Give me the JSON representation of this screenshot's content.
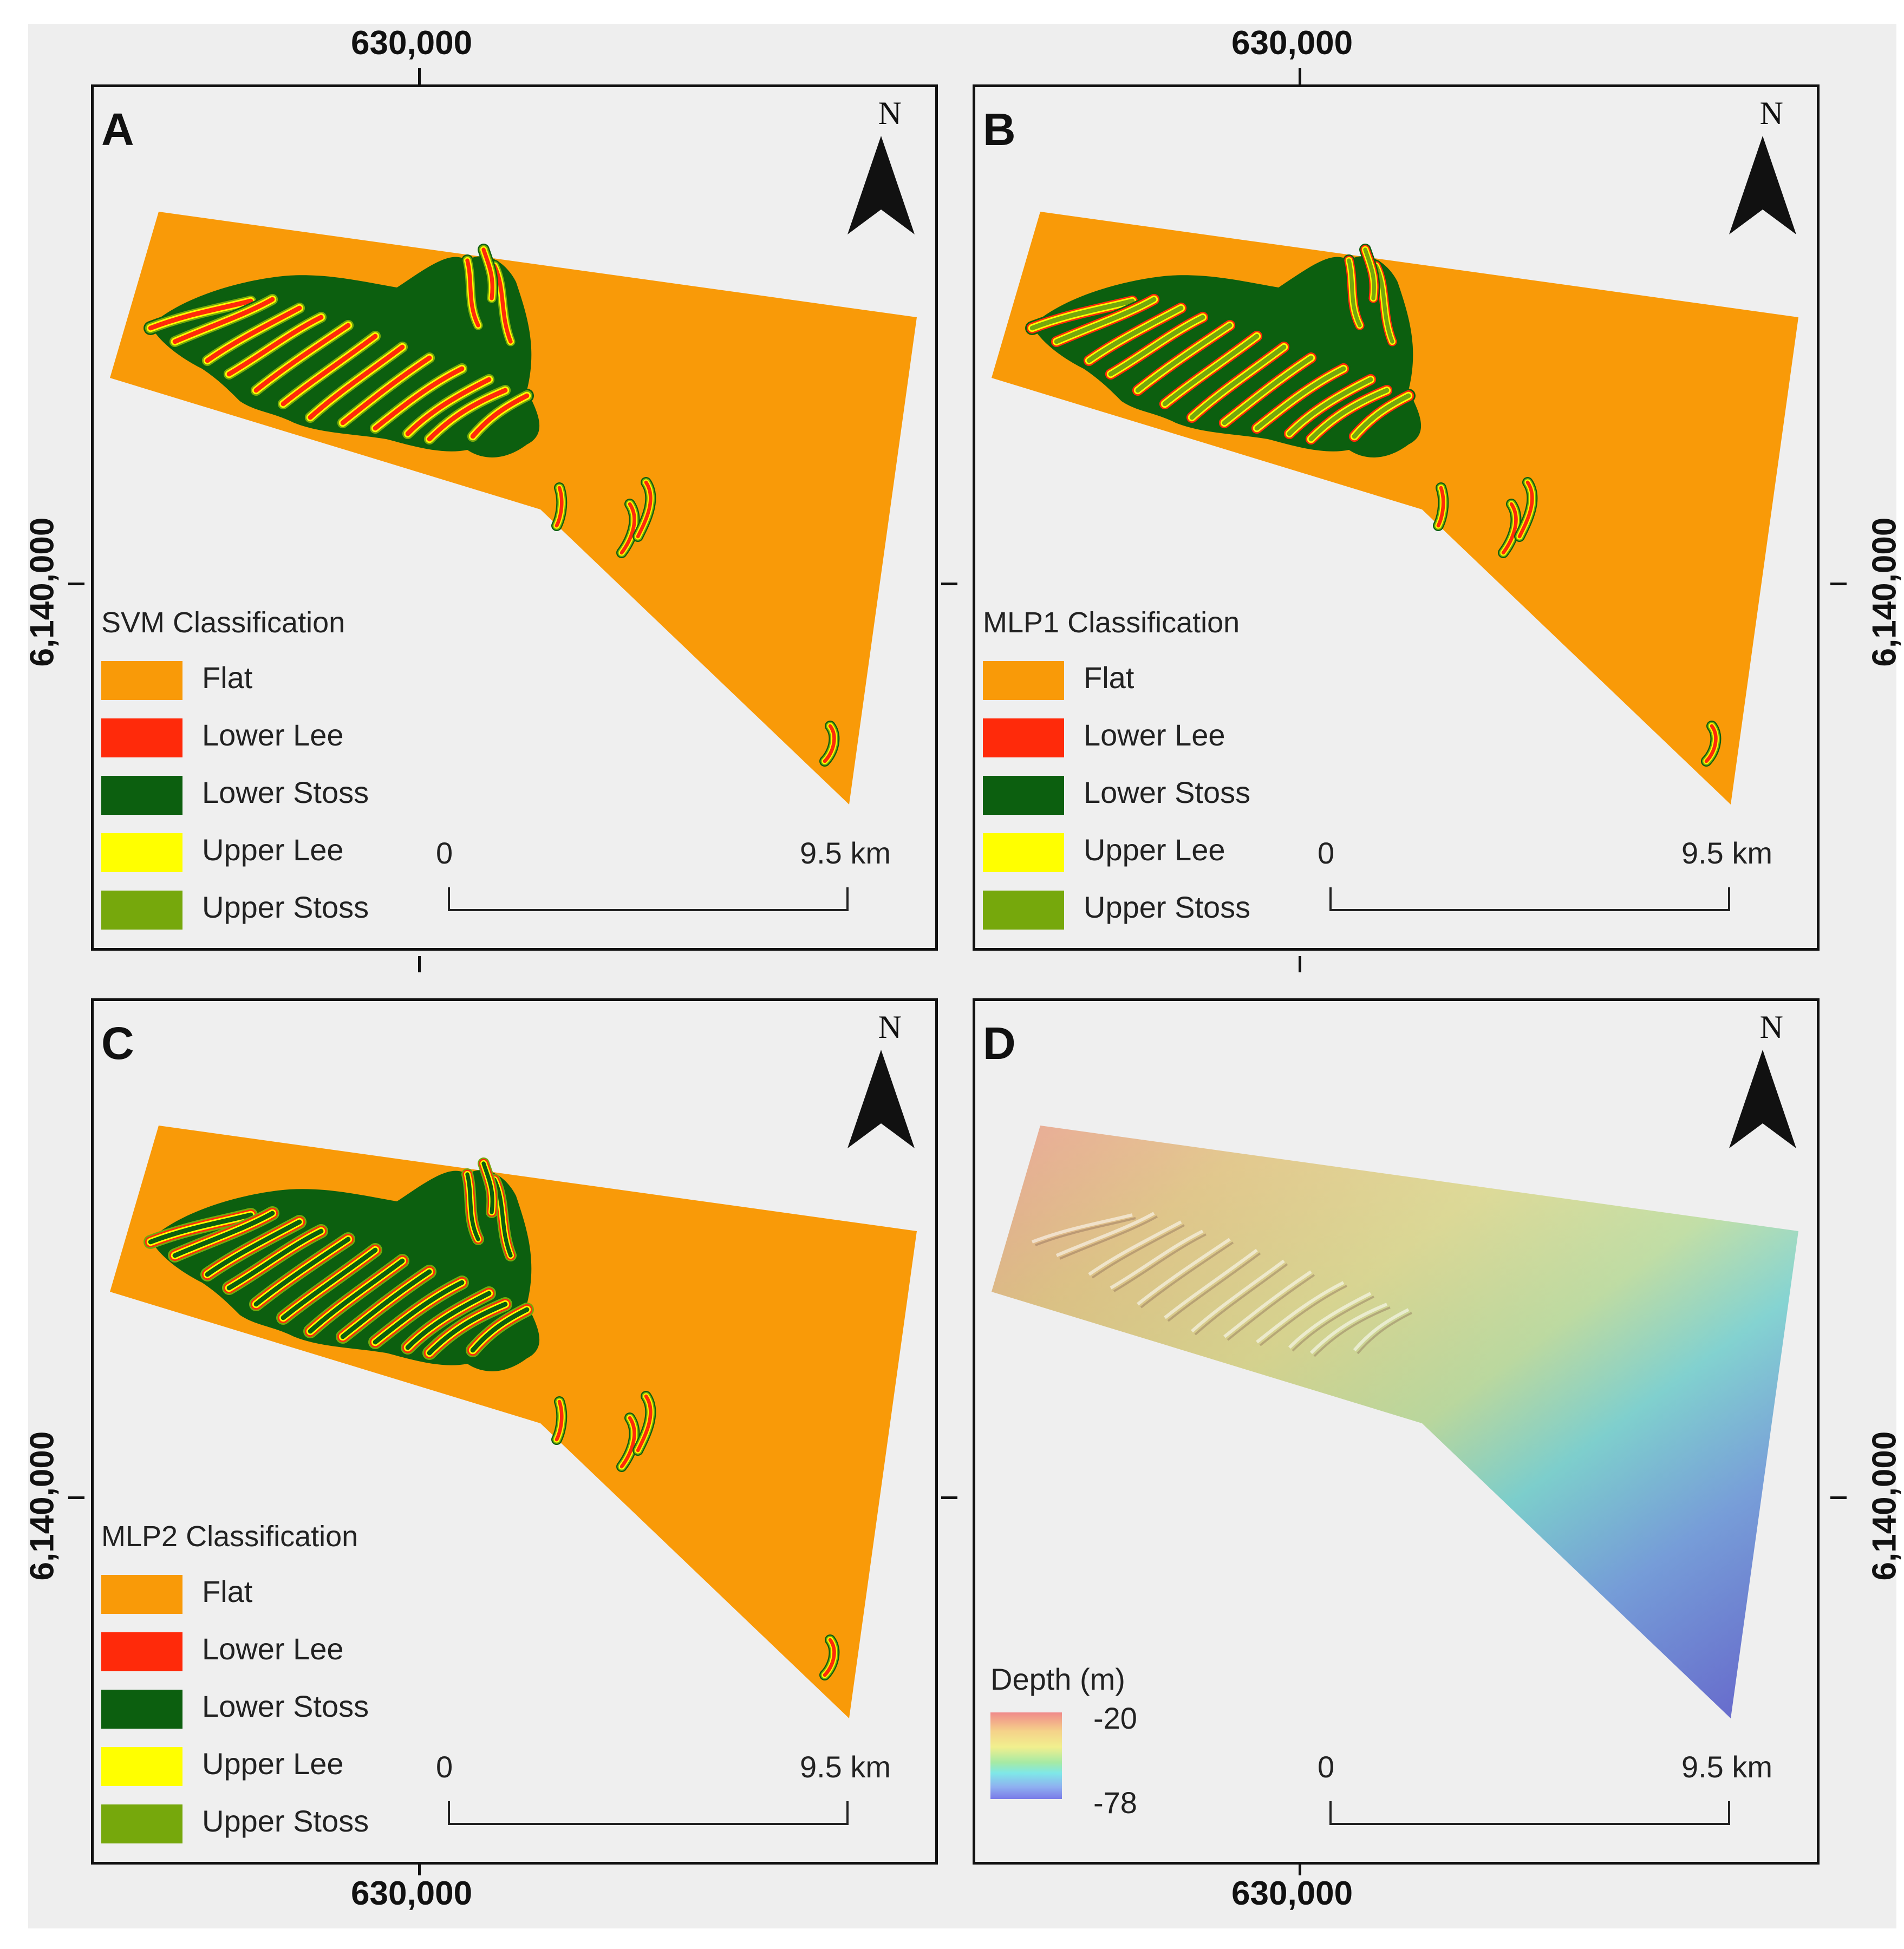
{
  "grid_labels": {
    "easting": "630,000",
    "northing": "6,140,000"
  },
  "north_label": "N",
  "scale": {
    "start": "0",
    "end": "9.5 km"
  },
  "classes": [
    {
      "label": "Flat",
      "color": "#F99A08"
    },
    {
      "label": "Lower Lee",
      "color": "#FF2A0A"
    },
    {
      "label": "Lower Stoss",
      "color": "#0C5F0F"
    },
    {
      "label": "Upper Lee",
      "color": "#FFFF00"
    },
    {
      "label": "Upper Stoss",
      "color": "#76A80C"
    }
  ],
  "panels": {
    "a": {
      "letter": "A",
      "legend_title": "SVM Classification"
    },
    "b": {
      "letter": "B",
      "legend_title": "MLP1 Classification"
    },
    "c": {
      "letter": "C",
      "legend_title": "MLP2 Classification"
    },
    "d": {
      "letter": "D",
      "legend_title": "Depth (m)",
      "depth_max": "-20",
      "depth_min": "-78"
    }
  }
}
